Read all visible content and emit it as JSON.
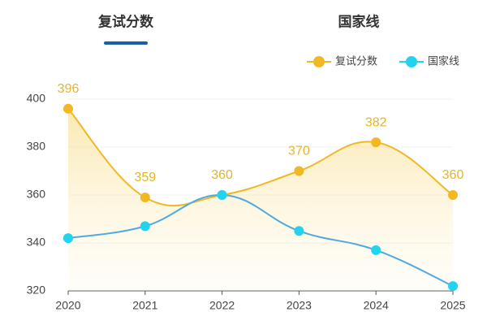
{
  "tabs": [
    "复试分数",
    "国家线"
  ],
  "chart_data": {
    "type": "line",
    "smooth": true,
    "grid": true,
    "categories": [
      "2020",
      "2021",
      "2022",
      "2023",
      "2024",
      "2025"
    ],
    "series": [
      {
        "name": "复试分数",
        "color": "#f2b824",
        "area": true,
        "values": [
          396,
          359,
          360,
          370,
          382,
          360
        ],
        "show_labels": true
      },
      {
        "name": "国家线",
        "color": "#22d3f0",
        "line_color": "#4eaae2",
        "values": [
          342,
          347,
          360,
          345,
          337,
          322
        ]
      }
    ],
    "ylim": [
      320,
      400
    ],
    "yticks": [
      320,
      340,
      360,
      380,
      400
    ]
  }
}
